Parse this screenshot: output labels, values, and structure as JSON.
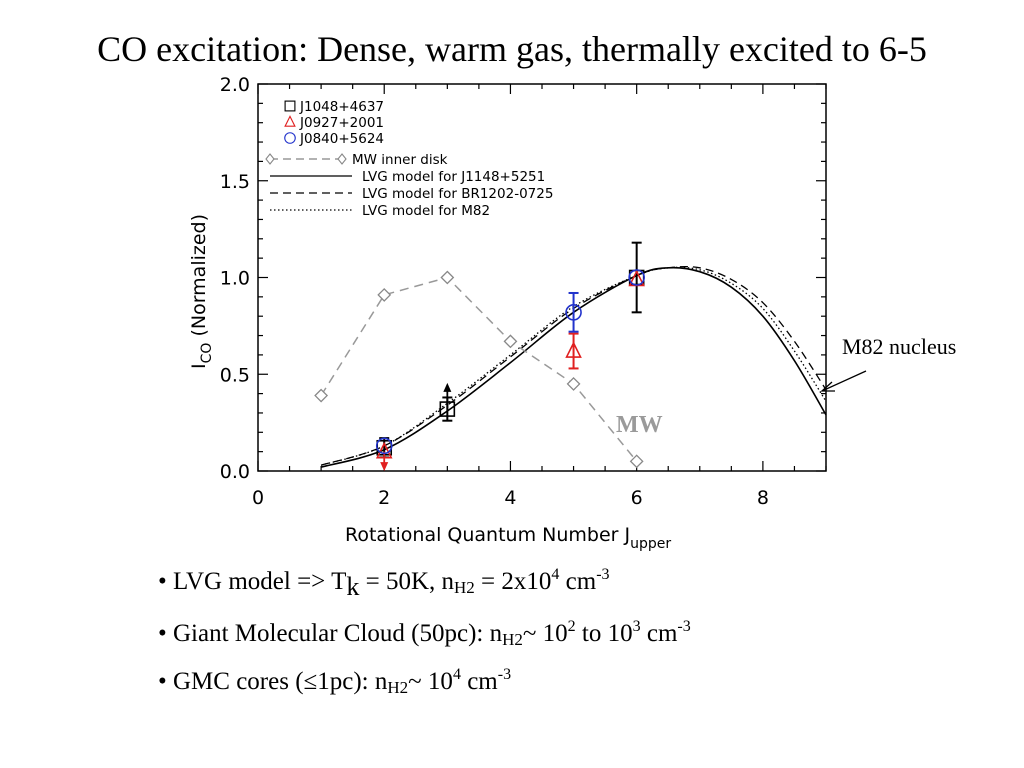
{
  "title": "CO excitation: Dense, warm gas, thermally excited to 6-5",
  "chart_data": {
    "type": "line",
    "xlabel": "Rotational Quantum Number J",
    "xlabel_sub": "upper",
    "ylabel": "I",
    "ylabel_sub": "CO",
    "ylabel_suffix": " (Normalized)",
    "xlim": [
      0,
      9
    ],
    "ylim": [
      0,
      2
    ],
    "xticks": [
      0,
      2,
      4,
      6,
      8
    ],
    "yticks": [
      0.0,
      0.5,
      1.0,
      1.5,
      2.0
    ],
    "ytick_labels": [
      "0.0",
      "0.5",
      "1.0",
      "1.5",
      "2.0"
    ],
    "legend_position": "top-left",
    "data_series": [
      {
        "name": "J1048+4637",
        "marker": "square",
        "color": "#000000",
        "points": [
          {
            "x": 2,
            "y": 0.12,
            "err": 0.05
          },
          {
            "x": 3,
            "y": 0.32,
            "err": 0.06,
            "lower_limit": true
          },
          {
            "x": 6,
            "y": 1.0,
            "err": 0.18
          }
        ]
      },
      {
        "name": "J0927+2001",
        "marker": "triangle",
        "color": "#e02020",
        "points": [
          {
            "x": 2,
            "y": 0.1,
            "upper_limit": true
          },
          {
            "x": 5,
            "y": 0.62,
            "err": 0.09
          },
          {
            "x": 6,
            "y": 0.99
          }
        ]
      },
      {
        "name": "J0840+5624",
        "marker": "circle",
        "color": "#2233cc",
        "points": [
          {
            "x": 2,
            "y": 0.13
          },
          {
            "x": 5,
            "y": 0.82,
            "err": 0.1
          },
          {
            "x": 6,
            "y": 1.0
          }
        ]
      }
    ],
    "mw_series": {
      "name": "MW inner disk",
      "color": "#999999",
      "x": [
        1,
        2,
        3,
        4,
        5,
        6
      ],
      "y": [
        0.39,
        0.91,
        1.0,
        0.67,
        0.45,
        0.05
      ]
    },
    "models": [
      {
        "name": "LVG model for J1148+5251",
        "dash": "solid",
        "x": [
          1,
          2,
          3,
          4,
          5,
          6,
          6.5,
          7,
          7.5,
          8,
          8.5,
          9
        ],
        "y": [
          0.02,
          0.11,
          0.31,
          0.56,
          0.82,
          1.01,
          1.05,
          1.03,
          0.95,
          0.8,
          0.57,
          0.29
        ]
      },
      {
        "name": "LVG model for BR1202-0725",
        "dash": "dashed",
        "x": [
          1,
          2,
          3,
          4,
          5,
          6,
          6.5,
          7,
          7.5,
          8,
          8.5,
          9
        ],
        "y": [
          0.03,
          0.13,
          0.34,
          0.59,
          0.84,
          1.01,
          1.05,
          1.05,
          0.99,
          0.87,
          0.67,
          0.42
        ]
      },
      {
        "name": "LVG model for M82",
        "dash": "dotted",
        "x": [
          1,
          2,
          3,
          4,
          5,
          6,
          6.5,
          7,
          7.5,
          8,
          8.5,
          9
        ],
        "y": [
          0.03,
          0.13,
          0.35,
          0.6,
          0.85,
          1.01,
          1.05,
          1.04,
          0.97,
          0.84,
          0.62,
          0.36
        ]
      }
    ],
    "annotations": {
      "m82": "M82  nucleus",
      "mw": "MW"
    }
  },
  "bullets": {
    "b1": {
      "prefix": "• LVG model => T",
      "t_sub": "k",
      "mid": " = 50K,  n",
      "n_sub": "H2",
      "eq": " = 2x10",
      "exp": "4",
      "unit": " cm",
      "unit_exp": "-3"
    },
    "b2": {
      "prefix": "• Giant Molecular Cloud (50pc): n",
      "n_sub": "H2",
      "mid1": "~ 10",
      "exp1": "2",
      "mid2": " to 10",
      "exp2": "3",
      "unit": " cm",
      "unit_exp": "-3"
    },
    "b3": {
      "prefix": "• GMC cores (≤1pc): n",
      "n_sub": "H2",
      "mid": "~ 10",
      "exp": "4",
      "unit": " cm",
      "unit_exp": "-3"
    }
  }
}
